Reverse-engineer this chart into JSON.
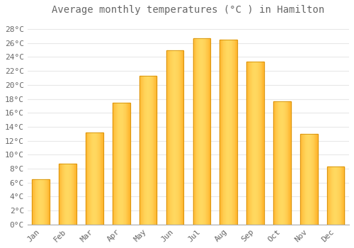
{
  "title": "Average monthly temperatures (°C ) in Hamilton",
  "months": [
    "Jan",
    "Feb",
    "Mar",
    "Apr",
    "May",
    "Jun",
    "Jul",
    "Aug",
    "Sep",
    "Oct",
    "Nov",
    "Dec"
  ],
  "values": [
    6.5,
    8.7,
    13.2,
    17.4,
    21.3,
    25.0,
    26.7,
    26.5,
    23.3,
    17.6,
    13.0,
    8.3
  ],
  "bar_color_left": "#FFB020",
  "bar_color_center": "#FFD060",
  "bar_color_right": "#FF9010",
  "background_color": "#FFFFFF",
  "plot_bg_color": "#FFFFFF",
  "grid_color": "#E8E8E8",
  "text_color": "#666666",
  "ytick_labels": [
    "0°C",
    "2°C",
    "4°C",
    "6°C",
    "8°C",
    "10°C",
    "12°C",
    "14°C",
    "16°C",
    "18°C",
    "20°C",
    "22°C",
    "24°C",
    "26°C",
    "28°C"
  ],
  "ytick_values": [
    0,
    2,
    4,
    6,
    8,
    10,
    12,
    14,
    16,
    18,
    20,
    22,
    24,
    26,
    28
  ],
  "ylim": [
    0,
    29.5
  ],
  "title_fontsize": 10,
  "tick_fontsize": 8,
  "font_family": "monospace"
}
